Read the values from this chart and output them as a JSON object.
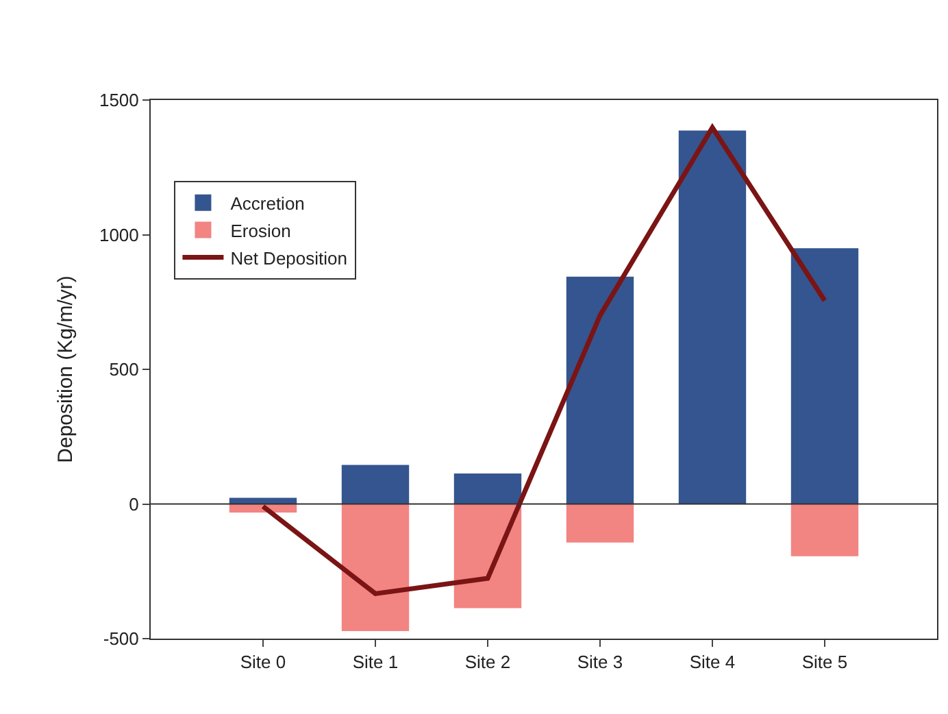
{
  "chart_data": {
    "type": "bar",
    "ylabel": "Deposition (Kg/m/yr)",
    "categories": [
      "Site 0",
      "Site 1",
      "Site 2",
      "Site 3",
      "Site 4",
      "Site 5"
    ],
    "stacked": true,
    "series": [
      {
        "name": "Accretion",
        "color": "#34558f",
        "values": [
          23,
          145,
          113,
          844,
          1387,
          950
        ]
      },
      {
        "name": "Erosion",
        "color": "#f28482",
        "values": [
          -32,
          -472,
          -387,
          -143,
          null,
          -194
        ]
      },
      {
        "name": "Net Deposition",
        "type": "line",
        "color": "#7b1414",
        "values": [
          -9,
          -333,
          -276,
          700,
          1398,
          755
        ]
      }
    ],
    "ylim": [
      -500,
      1500
    ],
    "yticks": [
      -500,
      0,
      500,
      1000,
      1500
    ],
    "ref_lines": [
      {
        "axis": "y",
        "value": 0,
        "color": "#333333"
      }
    ],
    "grid": false,
    "legend": "top left",
    "marker": "none",
    "line_style": "solid"
  }
}
